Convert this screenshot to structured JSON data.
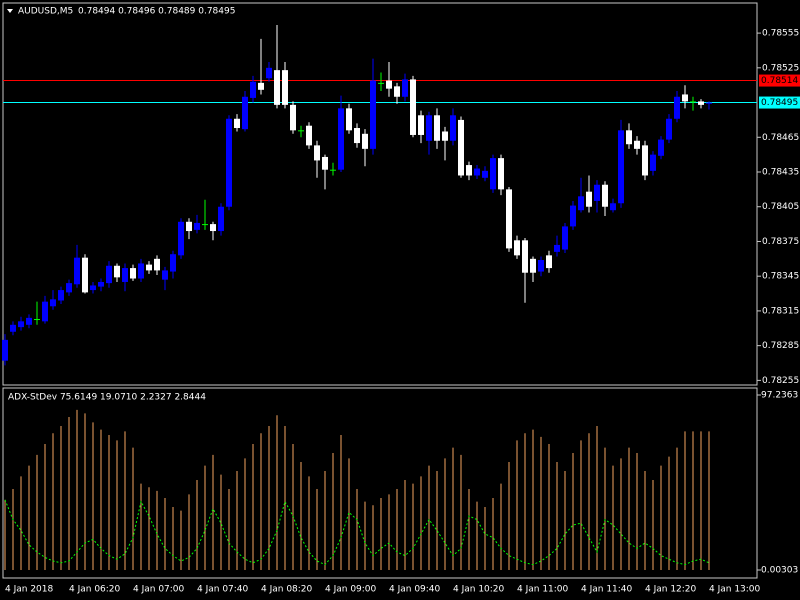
{
  "chart_data": [
    {
      "type": "candlestick",
      "title": "AUDUSD,M5",
      "subtitle": "0.78494 0.78496 0.78489 0.78495",
      "categories": [
        "4 Jan 2018",
        null,
        null,
        null,
        null,
        null,
        null,
        null,
        "4 Jan 06:20",
        null,
        null,
        null,
        null,
        null,
        null,
        null,
        "4 Jan 07:00",
        null,
        null,
        null,
        null,
        null,
        null,
        null,
        "4 Jan 07:40",
        null,
        null,
        null,
        null,
        null,
        null,
        null,
        "4 Jan 08:20",
        null,
        null,
        null,
        null,
        null,
        null,
        null,
        "4 Jan 09:00",
        null,
        null,
        null,
        null,
        null,
        null,
        null,
        "4 Jan 09:40",
        null,
        null,
        null,
        null,
        null,
        null,
        null,
        "4 Jan 10:20",
        null,
        null,
        null,
        null,
        null,
        null,
        null,
        "4 Jan 11:00",
        null,
        null,
        null,
        null,
        null,
        null,
        null,
        "4 Jan 11:40",
        null,
        null,
        null,
        null,
        null,
        null,
        null,
        "4 Jan 12:20",
        null,
        null,
        null,
        null,
        null,
        null,
        null,
        "4 Jan 13:00"
      ],
      "open": [
        0.78272,
        0.78297,
        0.78301,
        0.78303,
        0.78308,
        0.78306,
        0.78319,
        0.78324,
        0.78331,
        0.78338,
        0.78361,
        0.78333,
        0.78336,
        0.78339,
        0.78354,
        0.7834,
        0.78352,
        0.78343,
        0.78355,
        0.7836,
        0.78342,
        0.78349,
        0.78363,
        0.78392,
        0.78385,
        0.7839,
        0.7839,
        0.78384,
        0.78405,
        0.78481,
        0.78472,
        0.78499,
        0.78512,
        0.78516,
        0.78523,
        0.78523,
        0.78493,
        0.78471,
        0.78475,
        0.78458,
        0.78448,
        0.78437,
        0.78437,
        0.7849,
        0.78473,
        0.78468,
        0.78455,
        0.78512,
        0.78514,
        0.78509,
        0.785,
        0.78515,
        0.78484,
        0.78462,
        0.78484,
        0.7847,
        0.78462,
        0.7848,
        0.78441,
        0.78432,
        0.7843,
        0.7842,
        0.78447,
        0.7842,
        0.78376,
        0.78376,
        0.7836,
        0.78349,
        0.78363,
        0.78366,
        0.78368,
        0.78388,
        0.78402,
        0.78418,
        0.7841,
        0.78424,
        0.78402,
        0.78408,
        0.78471,
        0.78462,
        0.78458,
        0.78436,
        0.78449,
        0.78463,
        0.78481,
        0.78502,
        0.78496,
        0.78496,
        0.78494
      ],
      "high": [
        0.78295,
        0.78306,
        0.7831,
        0.78312,
        0.78323,
        0.78328,
        0.78333,
        0.78336,
        0.78342,
        0.78372,
        0.78364,
        0.7834,
        0.78343,
        0.78358,
        0.78356,
        0.78356,
        0.78355,
        0.7836,
        0.78358,
        0.78363,
        0.78353,
        0.78367,
        0.78395,
        0.78395,
        0.78398,
        0.78411,
        0.78392,
        0.78408,
        0.78484,
        0.78485,
        0.78505,
        0.78518,
        0.7855,
        0.7853,
        0.78562,
        0.7853,
        0.78496,
        0.78475,
        0.78478,
        0.78462,
        0.7845,
        0.78443,
        0.78501,
        0.78494,
        0.78477,
        0.78472,
        0.78533,
        0.78521,
        0.7853,
        0.78512,
        0.7852,
        0.78518,
        0.78488,
        0.78487,
        0.7849,
        0.78474,
        0.7849,
        0.78483,
        0.78444,
        0.78441,
        0.7844,
        0.7845,
        0.7845,
        0.78422,
        0.7838,
        0.78378,
        0.78362,
        0.78362,
        0.78367,
        0.7838,
        0.78391,
        0.7841,
        0.7843,
        0.78432,
        0.78428,
        0.78427,
        0.78412,
        0.7848,
        0.78477,
        0.78466,
        0.78462,
        0.78453,
        0.78466,
        0.78485,
        0.78505,
        0.7851,
        0.785,
        0.78498,
        0.78496
      ],
      "low": [
        0.78268,
        0.78294,
        0.78298,
        0.783,
        0.78303,
        0.78304,
        0.78316,
        0.78321,
        0.78328,
        0.78335,
        0.7833,
        0.7833,
        0.78332,
        0.78335,
        0.7834,
        0.78332,
        0.78341,
        0.7834,
        0.78347,
        0.78346,
        0.78333,
        0.78343,
        0.7836,
        0.78377,
        0.78382,
        0.78385,
        0.78376,
        0.7838,
        0.78402,
        0.7847,
        0.7847,
        0.78495,
        0.78502,
        0.78513,
        0.7849,
        0.7849,
        0.78468,
        0.78465,
        0.78455,
        0.7843,
        0.7842,
        0.78432,
        0.78435,
        0.78468,
        0.78456,
        0.7844,
        0.7845,
        0.78505,
        0.785,
        0.78494,
        0.78496,
        0.78465,
        0.7846,
        0.7845,
        0.78455,
        0.78445,
        0.78458,
        0.7843,
        0.78428,
        0.78429,
        0.78427,
        0.78417,
        0.78415,
        0.78366,
        0.7836,
        0.78322,
        0.7834,
        0.78345,
        0.78348,
        0.78362,
        0.78365,
        0.78385,
        0.784,
        0.784,
        0.784,
        0.78397,
        0.784,
        0.78404,
        0.78455,
        0.7845,
        0.78428,
        0.78432,
        0.78446,
        0.7846,
        0.78478,
        0.7849,
        0.78488,
        0.7849,
        0.78489
      ],
      "close": [
        0.7829,
        0.78303,
        0.78306,
        0.78309,
        0.78308,
        0.78323,
        0.78325,
        0.78333,
        0.78339,
        0.78361,
        0.78331,
        0.78337,
        0.7834,
        0.78354,
        0.78344,
        0.78352,
        0.78343,
        0.78356,
        0.7835,
        0.7835,
        0.7835,
        0.78364,
        0.78392,
        0.78384,
        0.78391,
        0.7839,
        0.78384,
        0.78405,
        0.78481,
        0.78473,
        0.785,
        0.78513,
        0.78506,
        0.78525,
        0.78493,
        0.78493,
        0.78471,
        0.78471,
        0.78458,
        0.78445,
        0.78437,
        0.78437,
        0.7849,
        0.78471,
        0.7846,
        0.78455,
        0.78514,
        0.78512,
        0.78507,
        0.785,
        0.78515,
        0.78467,
        0.78467,
        0.78484,
        0.78462,
        0.78462,
        0.78484,
        0.78432,
        0.78432,
        0.78438,
        0.78436,
        0.78447,
        0.7842,
        0.78369,
        0.78363,
        0.78348,
        0.78348,
        0.78359,
        0.78352,
        0.78372,
        0.78388,
        0.78406,
        0.78414,
        0.78405,
        0.78424,
        0.78405,
        0.78408,
        0.78471,
        0.78459,
        0.78455,
        0.78432,
        0.7845,
        0.78463,
        0.78481,
        0.785,
        0.78496,
        0.78496,
        0.78493,
        0.78495
      ],
      "up_color": "#0000ff",
      "down_color": "#ffffff",
      "doji_color": "#00ff00",
      "ylim": [
        0.78251,
        0.78581
      ],
      "yticks": [
        0.78555,
        0.78525,
        0.78465,
        0.78435,
        0.78405,
        0.78375,
        0.78345,
        0.78315,
        0.78285,
        0.78255
      ],
      "price_lines": [
        {
          "value": 0.78514,
          "color": "#ff0000"
        },
        {
          "value": 0.78495,
          "color": "#00ffff"
        }
      ]
    },
    {
      "type": "bar",
      "title": "ADX-StDev 75.6149 19.0710 2.2327 2.8444",
      "values": [
        39,
        45,
        52,
        58,
        64,
        70,
        76,
        80,
        85,
        89,
        87,
        82,
        78,
        75,
        72,
        77,
        68,
        48,
        46,
        44,
        40,
        35,
        33,
        42,
        50,
        58,
        64,
        53,
        45,
        55,
        62,
        70,
        76,
        80,
        86,
        80,
        70,
        60,
        52,
        45,
        55,
        65,
        75,
        62,
        45,
        38,
        36,
        40,
        42,
        45,
        50,
        48,
        52,
        58,
        55,
        62,
        68,
        64,
        45,
        38,
        35,
        40,
        48,
        60,
        72,
        76,
        78,
        74,
        70,
        60,
        55,
        65,
        72,
        76,
        80,
        68,
        58,
        62,
        68,
        65,
        55,
        50,
        58,
        63,
        68,
        77,
        77,
        77,
        77
      ],
      "color": "#f4a460",
      "line_values": [
        39,
        28,
        22,
        14,
        10,
        7,
        5,
        4,
        5,
        10,
        15,
        17,
        12,
        8,
        6,
        9,
        18,
        38,
        30,
        20,
        12,
        8,
        5,
        7,
        12,
        22,
        34,
        26,
        15,
        10,
        6,
        4,
        6,
        12,
        22,
        38,
        30,
        18,
        10,
        5,
        3,
        8,
        18,
        32,
        28,
        15,
        8,
        12,
        15,
        10,
        8,
        12,
        20,
        28,
        22,
        15,
        8,
        12,
        30,
        28,
        20,
        18,
        12,
        8,
        6,
        4,
        3,
        5,
        8,
        12,
        20,
        25,
        26,
        18,
        10,
        28,
        25,
        20,
        15,
        12,
        15,
        12,
        8,
        6,
        4,
        3,
        5,
        6,
        4
      ],
      "line_color": "#00ff00",
      "ylim": [
        0.00303,
        97.2363
      ],
      "yticks": [
        97.2363,
        0.00303
      ]
    }
  ]
}
